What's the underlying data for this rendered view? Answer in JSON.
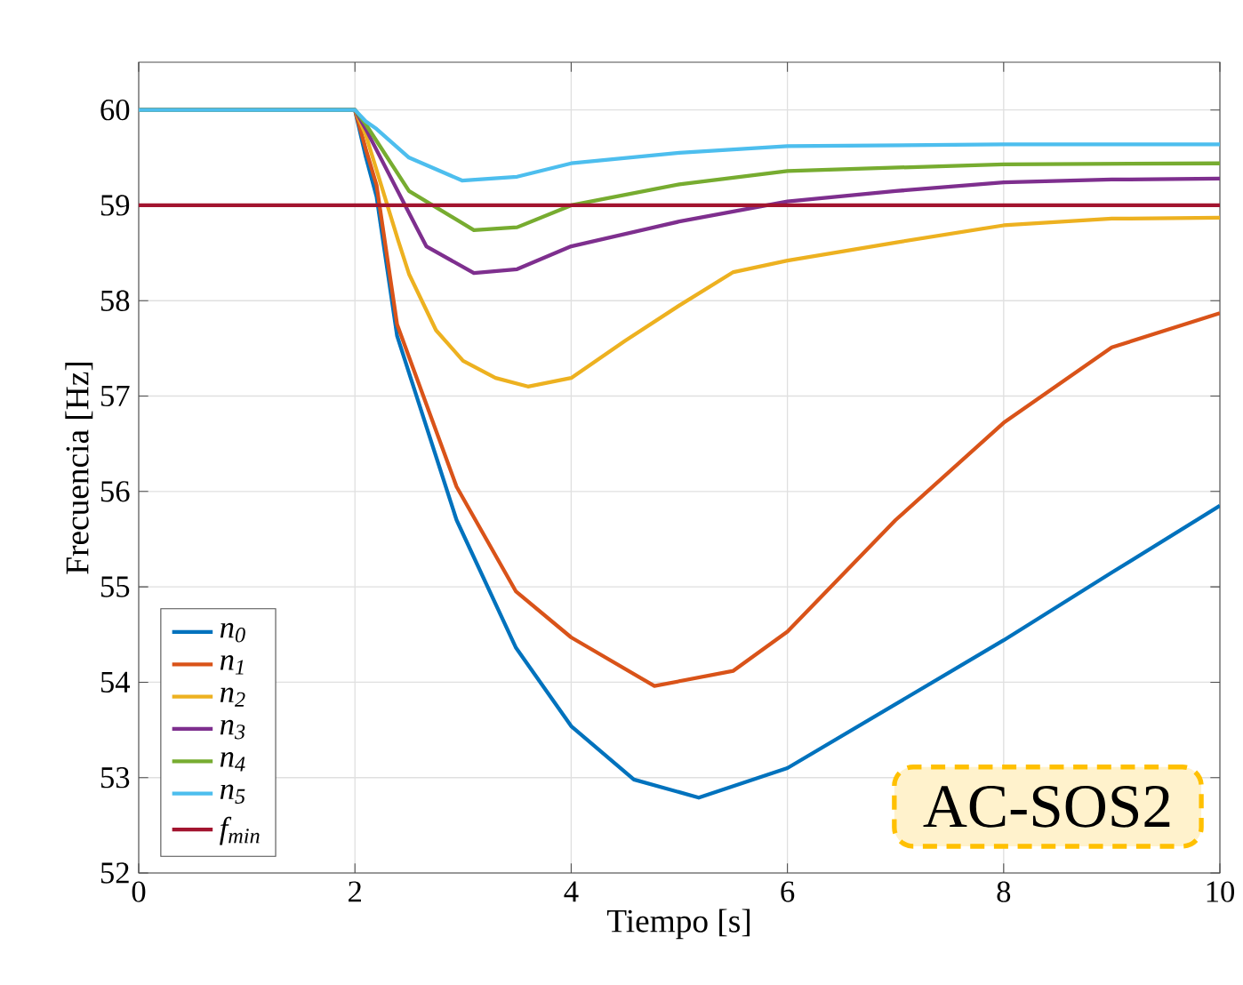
{
  "chart_data": {
    "type": "line",
    "xlabel": "Tiempo [s]",
    "ylabel": "Frecuencia [Hz]",
    "xlim": [
      0,
      10
    ],
    "ylim": [
      52,
      60.5
    ],
    "xticks": [
      0,
      2,
      4,
      6,
      8,
      10
    ],
    "yticks": [
      52,
      53,
      54,
      55,
      56,
      57,
      58,
      59,
      60
    ],
    "grid": true,
    "legend": "bottom left",
    "marker": "none",
    "line_style": "solid",
    "series": [
      {
        "name": "n$_{0}$",
        "color": "#0072bd",
        "x": [
          0,
          2,
          2.1,
          2.2,
          2.39,
          2.94,
          3.49,
          4,
          4.58,
          5.18,
          6,
          7,
          8,
          9,
          10
        ],
        "values": [
          60,
          60,
          59.51,
          59.09,
          57.63,
          55.7,
          54.36,
          53.54,
          52.98,
          52.79,
          53.1,
          53.77,
          54.44,
          55.15,
          55.85
        ]
      },
      {
        "name": "n$_{1}$",
        "color": "#d95319",
        "x": [
          0,
          2,
          2.1,
          2.2,
          2.39,
          2.94,
          3.49,
          4,
          4.77,
          5.5,
          6,
          7,
          8,
          9,
          10
        ],
        "values": [
          60,
          60,
          59.59,
          59.21,
          57.75,
          56.05,
          54.95,
          54.47,
          53.96,
          54.12,
          54.53,
          55.7,
          56.72,
          57.51,
          57.87
        ]
      },
      {
        "name": "n$_{2}$",
        "color": "#edb120",
        "x": [
          0,
          2,
          2.1,
          2.4,
          2.5,
          2.75,
          3,
          3.3,
          3.6,
          4,
          4.5,
          5,
          5.5,
          6,
          7,
          8,
          9,
          10
        ],
        "values": [
          60,
          60,
          59.74,
          58.63,
          58.28,
          57.69,
          57.37,
          57.19,
          57.1,
          57.19,
          57.58,
          57.95,
          58.3,
          58.42,
          58.61,
          58.79,
          58.86,
          58.87
        ]
      },
      {
        "name": "n$_{3}$",
        "color": "#7e2f8e",
        "x": [
          0,
          2,
          2.1,
          2.5,
          2.66,
          3.1,
          3.5,
          4,
          5,
          6,
          7,
          8,
          9,
          10
        ],
        "values": [
          60,
          60,
          59.8,
          58.92,
          58.57,
          58.29,
          58.33,
          58.57,
          58.83,
          59.04,
          59.15,
          59.24,
          59.27,
          59.28
        ]
      },
      {
        "name": "n$_{4}$",
        "color": "#77ac30",
        "x": [
          0,
          2,
          2.1,
          2.5,
          3.1,
          3.5,
          4,
          5,
          6,
          8,
          10
        ],
        "values": [
          60,
          60,
          59.85,
          59.15,
          58.74,
          58.77,
          59.0,
          59.22,
          59.36,
          59.43,
          59.44
        ]
      },
      {
        "name": "n$_{5}$",
        "color": "#4dbeee",
        "x": [
          0,
          2,
          2.1,
          2.2,
          2.5,
          2.99,
          3.5,
          4,
          5,
          6,
          8,
          10
        ],
        "values": [
          60,
          60,
          59.88,
          59.8,
          59.5,
          59.26,
          59.3,
          59.44,
          59.55,
          59.62,
          59.64,
          59.64
        ]
      }
    ],
    "ref_lines": [
      {
        "axis": "y",
        "value": 59,
        "label": "f$_{min}$",
        "color": "#a2142f",
        "line_style": "solid"
      }
    ],
    "annotations": [
      "AC-SOS2"
    ]
  }
}
